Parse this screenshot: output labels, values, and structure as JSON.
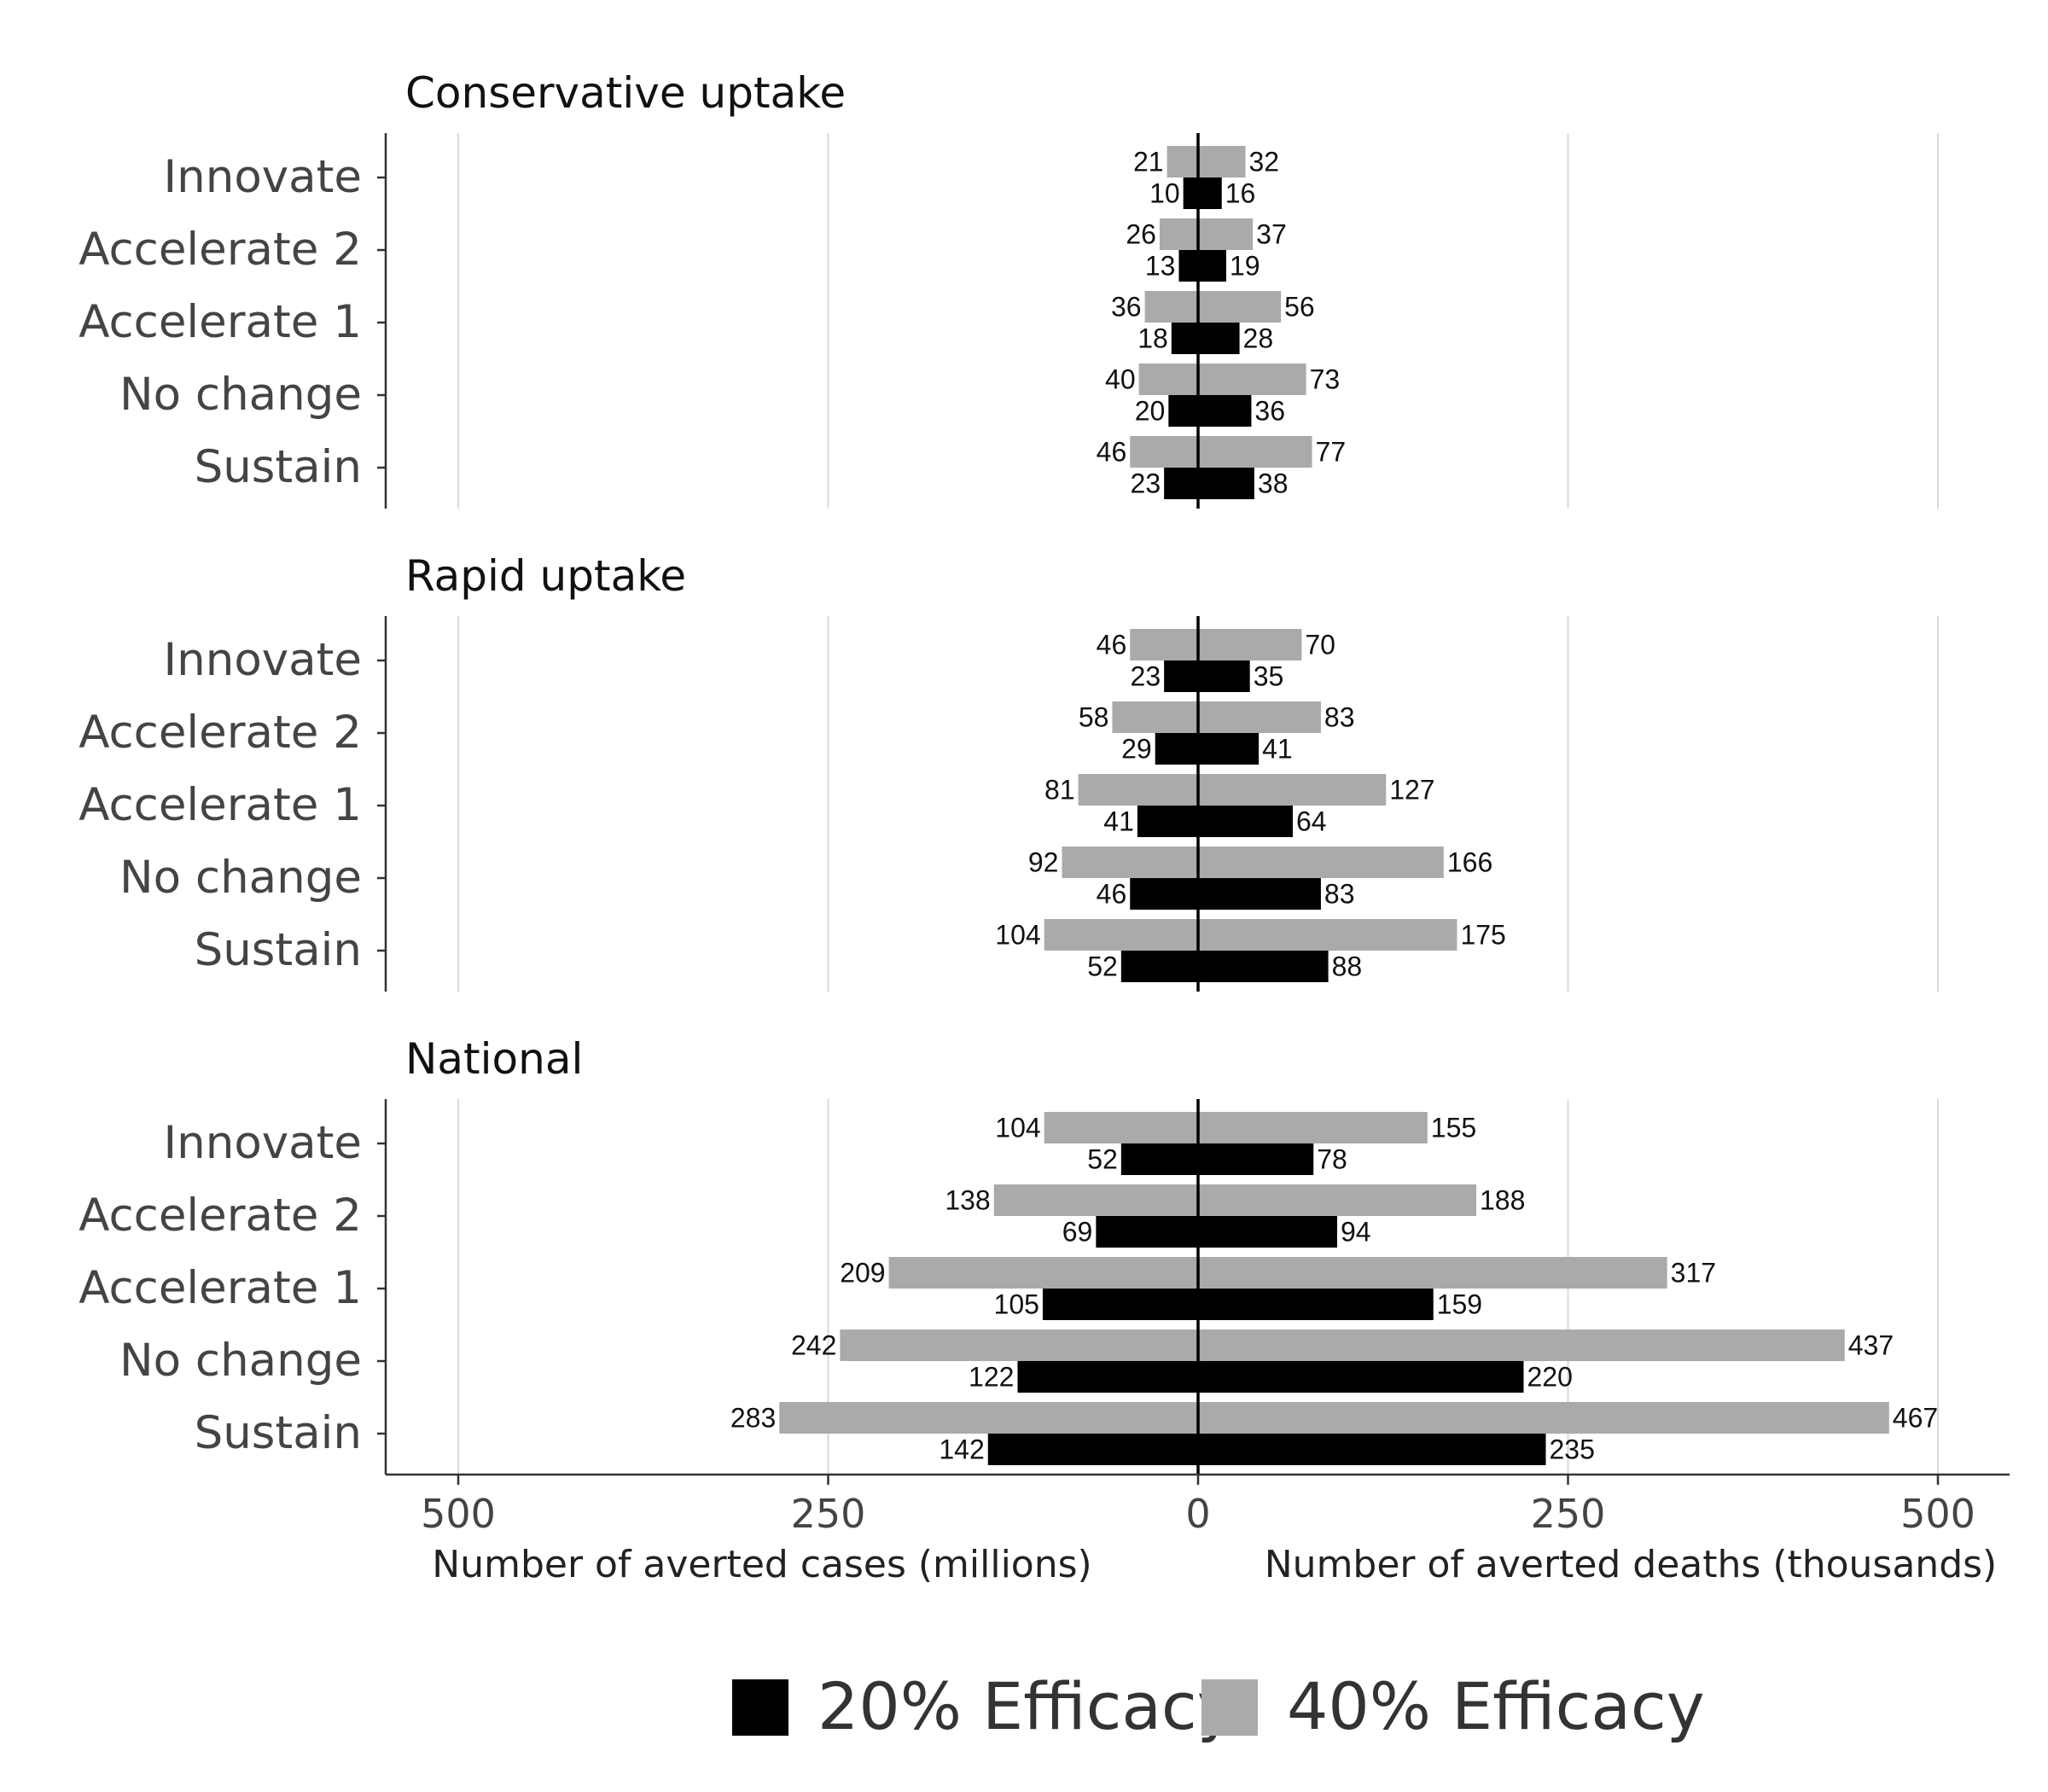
{
  "chart_data": {
    "type": "bar",
    "orientation": "horizontal-diverging",
    "categories": [
      "Innovate",
      "Accelerate 2",
      "Accelerate 1",
      "No change",
      "Sustain"
    ],
    "left_axis": {
      "label": "Number of averted cases (millions)",
      "ticks": [
        500,
        250,
        0
      ]
    },
    "right_axis": {
      "label": "Number of averted deaths (thousands)",
      "ticks": [
        250,
        500
      ]
    },
    "xlim": [
      -550,
      550
    ],
    "grid": "vertical",
    "legend_position": "bottom",
    "colors": {
      "efficacy20": "#000000",
      "efficacy40": "#aaaaaa",
      "grid": "#d9d9d9",
      "axis": "#333333"
    },
    "legend": [
      {
        "key": "efficacy20",
        "label": "20% Efficacy"
      },
      {
        "key": "efficacy40",
        "label": "40% Efficacy"
      }
    ],
    "panels": [
      {
        "title": "Conservative uptake",
        "series": [
          {
            "key": "efficacy40",
            "cases": [
              21,
              26,
              36,
              40,
              46
            ],
            "deaths": [
              32,
              37,
              56,
              73,
              77
            ]
          },
          {
            "key": "efficacy20",
            "cases": [
              10,
              13,
              18,
              20,
              23
            ],
            "deaths": [
              16,
              19,
              28,
              36,
              38
            ]
          }
        ]
      },
      {
        "title": "Rapid uptake",
        "series": [
          {
            "key": "efficacy40",
            "cases": [
              46,
              58,
              81,
              92,
              104
            ],
            "deaths": [
              70,
              83,
              127,
              166,
              175
            ]
          },
          {
            "key": "efficacy20",
            "cases": [
              23,
              29,
              41,
              46,
              52
            ],
            "deaths": [
              35,
              41,
              64,
              83,
              88
            ]
          }
        ]
      },
      {
        "title": "National",
        "series": [
          {
            "key": "efficacy40",
            "cases": [
              104,
              138,
              209,
              242,
              283
            ],
            "deaths": [
              155,
              188,
              317,
              437,
              467
            ]
          },
          {
            "key": "efficacy20",
            "cases": [
              52,
              69,
              105,
              122,
              142
            ],
            "deaths": [
              78,
              94,
              159,
              220,
              235
            ]
          }
        ]
      }
    ]
  }
}
